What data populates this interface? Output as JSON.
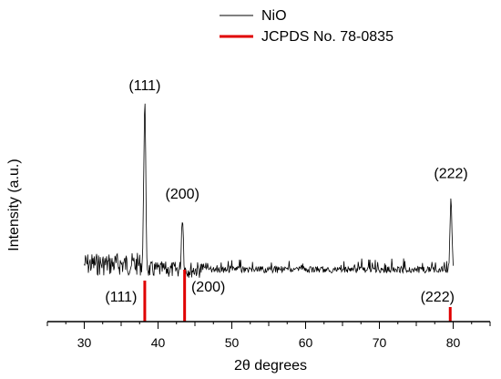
{
  "chart_data": {
    "type": "line",
    "title": "",
    "xlabel": "2θ degrees",
    "ylabel": "Intensity (a.u.)",
    "xlim": [
      25,
      85
    ],
    "xticks": [
      30,
      40,
      50,
      60,
      70,
      80
    ],
    "grid": false,
    "legend": {
      "placement": "top-center",
      "entries": [
        {
          "name": "NiO",
          "color": "#000000",
          "style": "thin-line"
        },
        {
          "name": "JCPDS No. 78-0835",
          "color": "#e00000",
          "style": "thick-line"
        }
      ]
    },
    "series": [
      {
        "name": "NiO",
        "color": "#000000",
        "baseline": 0,
        "peaks": [
          {
            "x": 38.2,
            "y": 100
          },
          {
            "x": 43.3,
            "y": 32
          },
          {
            "x": 79.7,
            "y": 42
          }
        ],
        "peak_labels": [
          "(111)",
          "(200)",
          "(222)"
        ]
      },
      {
        "name": "JCPDS No. 78-0835",
        "color": "#e00000",
        "reference_lines": [
          {
            "x": 38.2,
            "label": "(111)"
          },
          {
            "x": 43.6,
            "label": "(200)"
          },
          {
            "x": 79.6,
            "label": "(222)"
          }
        ]
      }
    ]
  }
}
